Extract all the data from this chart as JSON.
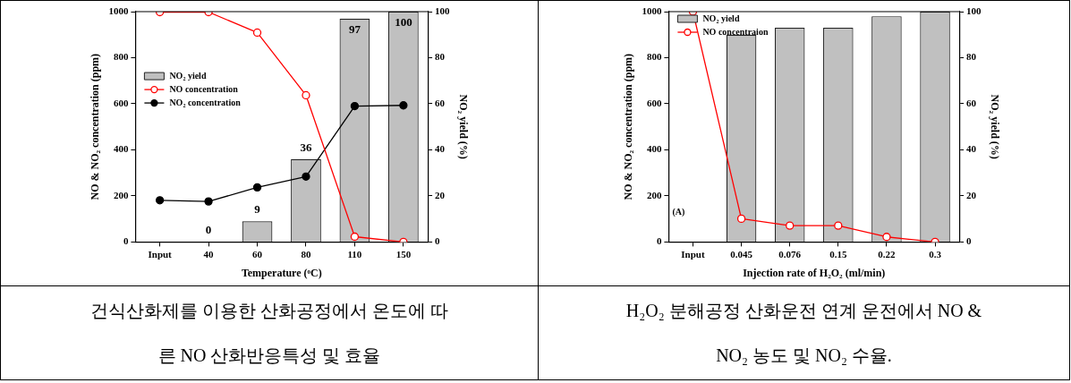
{
  "chart_data": [
    {
      "type": "bar",
      "title": "건식산화제를 이용한 산화공정에서 온도에 따른 NO 산화반응특성 및 효율",
      "xlabel": "Temperature (ᵒC)",
      "ylabel": "NO & NO₂ concentration (ppm)",
      "y2label": "NO₂ yield (%)",
      "categories": [
        "Input",
        "40",
        "60",
        "80",
        "110",
        "150"
      ],
      "series": [
        {
          "name": "NO₂ yield",
          "axis": "y2",
          "color": "#c0c0c0",
          "values": [
            null,
            0,
            9,
            36,
            97,
            100
          ],
          "value_labels": [
            null,
            "0",
            "9",
            "36",
            "97",
            "100"
          ]
        },
        {
          "name": "NO concentration",
          "type": "line",
          "color": "#ff0000",
          "values": [
            998,
            998,
            909,
            637,
            23,
            0
          ]
        },
        {
          "name": "NO₂ concentration",
          "type": "line",
          "color": "#000000",
          "values": [
            181,
            176,
            237,
            284,
            590,
            593
          ]
        }
      ],
      "ylim": [
        0,
        1000
      ],
      "yticks": [
        0,
        200,
        400,
        600,
        800,
        1000
      ],
      "y2lim": [
        0,
        100
      ],
      "y2ticks": [
        0,
        20,
        40,
        60,
        80,
        100
      ],
      "grid": false,
      "legend": "left",
      "marker": "circle"
    },
    {
      "type": "bar",
      "title": "H₂O₂ 분해공정 산화운전 연계 운전에서 NO & NO₂ 농도 및 NO₂ 수율.",
      "xlabel": "Injection rate of H₂O₂ (ml/min)",
      "ylabel": "NO & NO₂ concentration (ppm)",
      "y2label": "NO₂ yield (%)",
      "annotations": [
        "(A)"
      ],
      "categories": [
        "Input",
        "0.045",
        "0.076",
        "0.15",
        "0.22",
        "0.3"
      ],
      "series": [
        {
          "name": "NO₂ yield",
          "axis": "y2",
          "color": "#c0c0c0",
          "values": [
            null,
            90,
            93,
            93,
            98,
            100
          ]
        },
        {
          "name": "NO concentraion",
          "type": "line",
          "color": "#ff0000",
          "values": [
            1000,
            101,
            71,
            71,
            22,
            0
          ]
        }
      ],
      "ylim": [
        0,
        1000
      ],
      "yticks": [
        0,
        200,
        400,
        600,
        800,
        1000
      ],
      "y2lim": [
        0,
        100
      ],
      "y2ticks": [
        0,
        20,
        40,
        60,
        80,
        100
      ],
      "grid": false,
      "legend": "top left",
      "marker": "circle"
    }
  ]
}
